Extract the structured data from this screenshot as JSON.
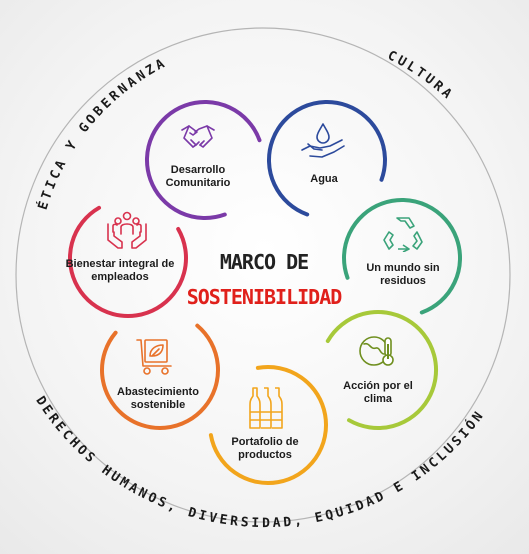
{
  "center": {
    "line1": "MARCO DE",
    "line2": "SOSTENIBILIDAD"
  },
  "ring": {
    "top_left": "ÉTICA Y GOBERNANZA",
    "top_right": "CULTURA",
    "bottom": "DERECHOS HUMANOS, DIVERSIDAD, EQUIDAD E INCLUSIÓN"
  },
  "nodes": [
    {
      "id": "desarrollo",
      "label": "Desarrollo Comunitario",
      "color": "#7b3aa8",
      "icon": "handshake-icon"
    },
    {
      "id": "agua",
      "label": "Agua",
      "color": "#2c4a9c",
      "icon": "water-drop-hand-icon"
    },
    {
      "id": "mundo",
      "label": "Un mundo sin residuos",
      "color": "#3aa37a",
      "icon": "recycle-icon"
    },
    {
      "id": "clima",
      "label": "Acción por el clima",
      "color": "#a7c93a",
      "icon": "globe-thermometer-icon"
    },
    {
      "id": "portafolio",
      "label": "Portafolio de productos",
      "color": "#f2a51c",
      "icon": "bottles-icon"
    },
    {
      "id": "abastecimiento",
      "label": "Abastecimiento sostenible",
      "color": "#e8722a",
      "icon": "cart-leaf-icon"
    },
    {
      "id": "bienestar",
      "label": "Bienestar integral de empleados",
      "color": "#d8324e",
      "icon": "people-hands-icon"
    }
  ],
  "colors": {
    "center_line1": "#222222",
    "center_line2": "#e0201b"
  }
}
